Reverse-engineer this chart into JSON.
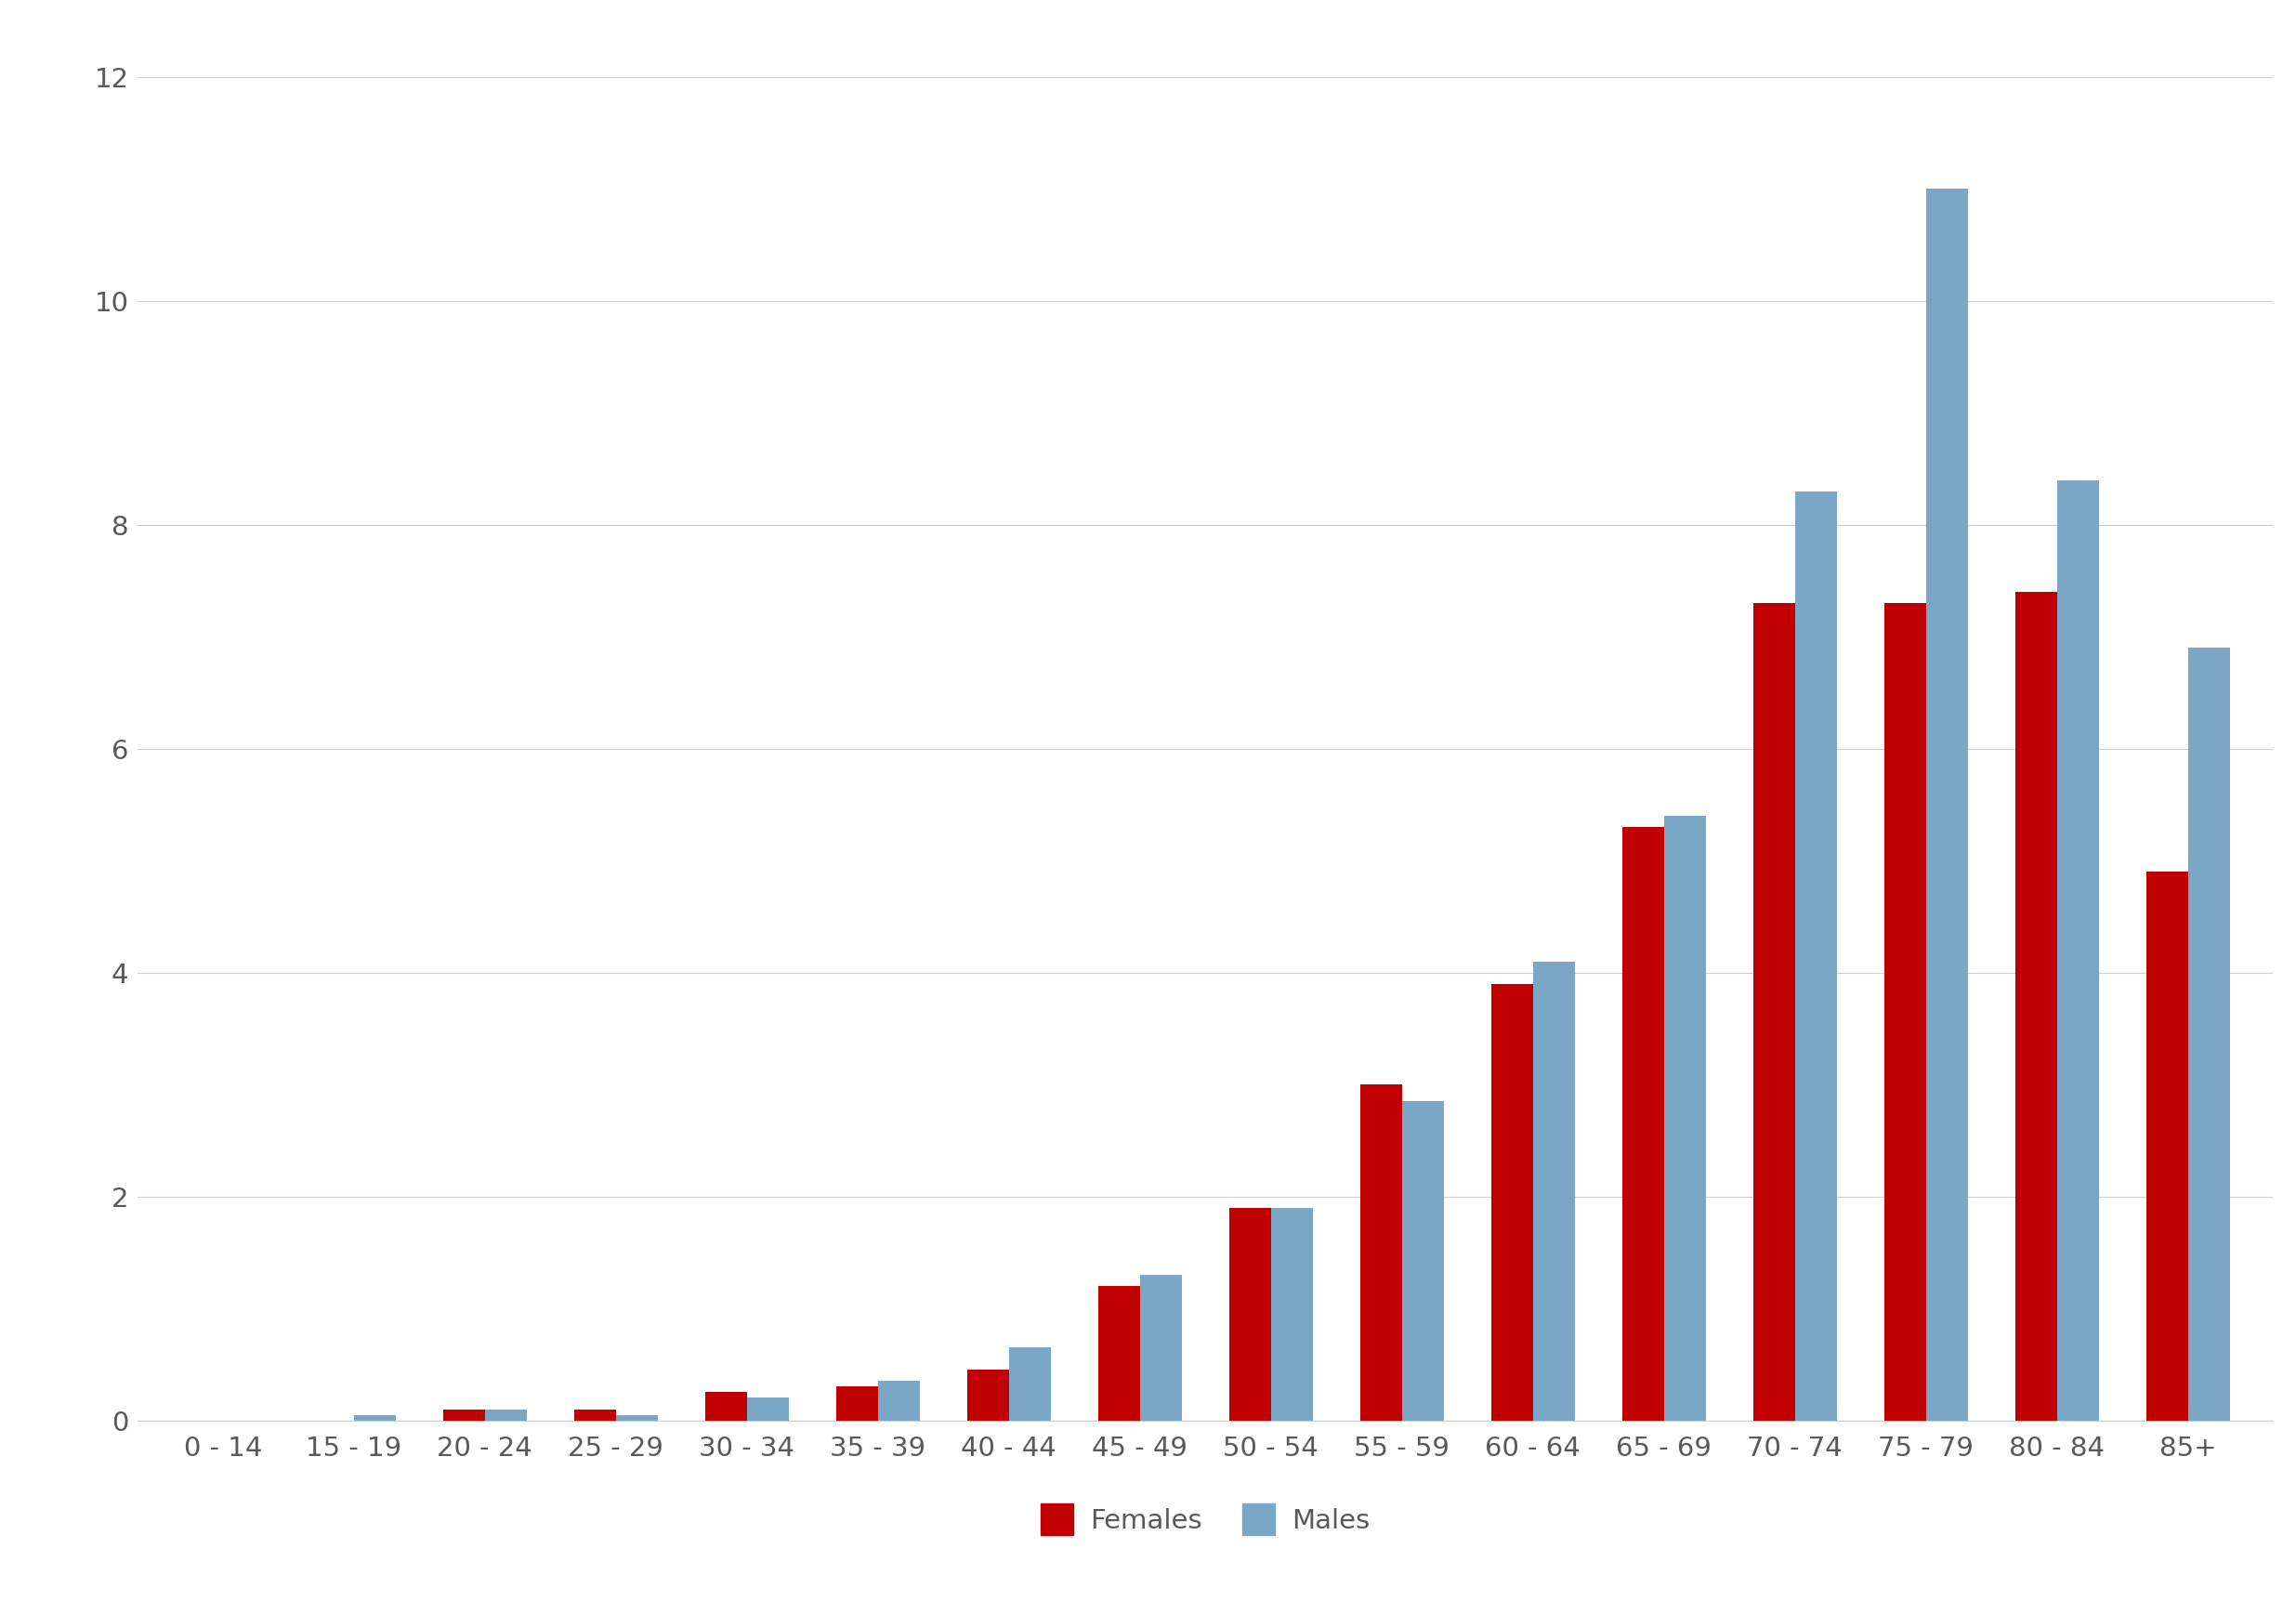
{
  "categories": [
    "0 - 14",
    "15 - 19",
    "20 - 24",
    "25 - 29",
    "30 - 34",
    "35 - 39",
    "40 - 44",
    "45 - 49",
    "50 - 54",
    "55 - 59",
    "60 - 64",
    "65 - 69",
    "70 - 74",
    "75 - 79",
    "80 - 84",
    "85+"
  ],
  "females": [
    0.0,
    0.0,
    0.1,
    0.1,
    0.25,
    0.3,
    0.45,
    1.2,
    1.9,
    3.0,
    3.9,
    5.3,
    7.3,
    7.3,
    7.4,
    4.9
  ],
  "males": [
    0.0,
    0.05,
    0.1,
    0.05,
    0.2,
    0.35,
    0.65,
    1.3,
    1.9,
    2.85,
    4.1,
    5.4,
    8.3,
    11.0,
    8.4,
    6.9
  ],
  "female_color": "#C00000",
  "male_color": "#7BA7C7",
  "background_color": "#ffffff",
  "plot_background": "#ffffff",
  "grid_color": "#d0d0d0",
  "yticks": [
    0,
    2,
    4,
    6,
    8,
    10,
    12
  ],
  "ylim": [
    0,
    12.4
  ],
  "bar_width": 0.32,
  "legend_labels": [
    "Females",
    "Males"
  ],
  "tick_fontsize": 21,
  "legend_fontsize": 21,
  "tick_color": "#595959"
}
